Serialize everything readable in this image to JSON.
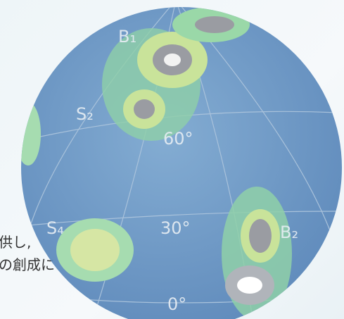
{
  "text_lines": [
    "供し,",
    "の創成に"
  ],
  "globe_labels": [
    "B₁",
    "S₂",
    "60°",
    "S₄",
    "30°",
    "B₂",
    "0°"
  ]
}
